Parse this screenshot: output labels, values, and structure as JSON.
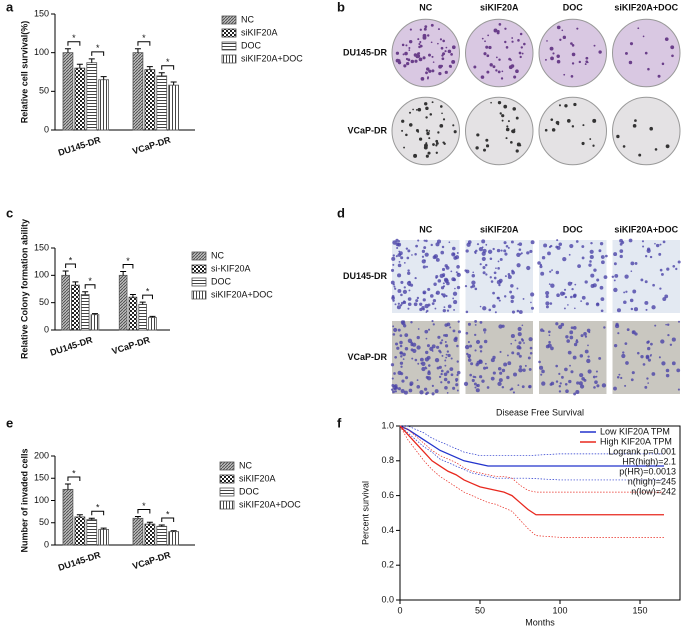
{
  "chart_data": [
    {
      "type": "bar",
      "panel_label": "a",
      "ylabel": "Relative cell survival(%)",
      "categories": [
        "DU145-DR",
        "VCaP-DR"
      ],
      "series": [
        {
          "name": "NC",
          "color": "#555",
          "pattern": "diagonal",
          "values": [
            100,
            100
          ],
          "errors": [
            5,
            5
          ]
        },
        {
          "name": "siKIF20A",
          "color": "#333",
          "pattern": "checker",
          "values": [
            80,
            78
          ],
          "errors": [
            5,
            4
          ]
        },
        {
          "name": "DOC",
          "color": "#555",
          "pattern": "horizontal",
          "values": [
            87,
            70
          ],
          "errors": [
            5,
            4
          ]
        },
        {
          "name": "siKIF20A+DOC",
          "color": "#555",
          "pattern": "vertical",
          "values": [
            65,
            58
          ],
          "errors": [
            4,
            4
          ]
        }
      ],
      "significance": [
        "*",
        "*",
        "*",
        "*"
      ],
      "ylim": [
        0,
        150
      ],
      "yticks": [
        0,
        50,
        100,
        150
      ]
    },
    {
      "type": "image-grid",
      "panel_label": "b",
      "columns": [
        "NC",
        "siKIF20A",
        "DOC",
        "siKIF20A+DOC"
      ],
      "rows": [
        "DU145-DR",
        "VCaP-DR"
      ],
      "style": "dish"
    },
    {
      "type": "bar",
      "panel_label": "c",
      "ylabel": "Relative Colony formation ability",
      "categories": [
        "DU145-DR",
        "VCaP-DR"
      ],
      "series": [
        {
          "name": "NC",
          "color": "#555",
          "pattern": "diagonal",
          "values": [
            100,
            100
          ],
          "errors": [
            8,
            7
          ]
        },
        {
          "name": "si-KIF20A",
          "color": "#333",
          "pattern": "checker",
          "values": [
            82,
            60
          ],
          "errors": [
            6,
            5
          ]
        },
        {
          "name": "DOC",
          "color": "#555",
          "pattern": "horizontal",
          "values": [
            65,
            47
          ],
          "errors": [
            5,
            4
          ]
        },
        {
          "name": "siKIF20A+DOC",
          "color": "#555",
          "pattern": "vertical",
          "values": [
            28,
            23
          ],
          "errors": [
            2,
            2
          ]
        }
      ],
      "significance": [
        "*",
        "*",
        "*",
        "*"
      ],
      "ylim": [
        0,
        150
      ],
      "yticks": [
        0,
        50,
        100,
        150
      ]
    },
    {
      "type": "image-grid",
      "panel_label": "d",
      "columns": [
        "NC",
        "siKIF20A",
        "DOC",
        "siKIF20A+DOC"
      ],
      "rows": [
        "DU145-DR",
        "VCaP-DR"
      ],
      "style": "micro"
    },
    {
      "type": "bar",
      "panel_label": "e",
      "ylabel": "Number of invaded cells",
      "categories": [
        "DU145-DR",
        "VCaP-DR"
      ],
      "series": [
        {
          "name": "NC",
          "color": "#555",
          "pattern": "diagonal",
          "values": [
            125,
            60
          ],
          "errors": [
            12,
            4
          ]
        },
        {
          "name": "siKIF20A",
          "color": "#333",
          "pattern": "checker",
          "values": [
            63,
            47
          ],
          "errors": [
            5,
            4
          ]
        },
        {
          "name": "DOC",
          "color": "#555",
          "pattern": "horizontal",
          "values": [
            57,
            42
          ],
          "errors": [
            3,
            3
          ]
        },
        {
          "name": "siKIF20A+DOC",
          "color": "#555",
          "pattern": "vertical",
          "values": [
            35,
            30
          ],
          "errors": [
            3,
            2
          ]
        }
      ],
      "significance": [
        "*",
        "*",
        "*",
        "*"
      ],
      "ylim": [
        0,
        200
      ],
      "yticks": [
        0,
        50,
        100,
        150,
        200
      ]
    },
    {
      "type": "line",
      "panel_label": "f",
      "title": "Disease Free Survival",
      "xlabel": "Months",
      "ylabel": "Percent survival",
      "series": [
        {
          "name": "Low KIF20A TPM",
          "color": "#2233cc",
          "x": [
            0,
            5,
            10,
            15,
            20,
            25,
            30,
            35,
            40,
            45,
            50,
            55,
            60,
            80,
            100,
            120,
            140,
            165
          ],
          "values": [
            1,
            0.98,
            0.95,
            0.92,
            0.89,
            0.86,
            0.84,
            0.82,
            0.8,
            0.79,
            0.78,
            0.77,
            0.77,
            0.77,
            0.77,
            0.77,
            0.77,
            0.77
          ],
          "ci_low": [
            1,
            0.96,
            0.92,
            0.88,
            0.85,
            0.81,
            0.79,
            0.77,
            0.75,
            0.73,
            0.72,
            0.71,
            0.7,
            0.7,
            0.69,
            0.69,
            0.69,
            0.69
          ],
          "ci_high": [
            1,
            1,
            0.98,
            0.96,
            0.93,
            0.91,
            0.89,
            0.87,
            0.85,
            0.84,
            0.83,
            0.83,
            0.83,
            0.83,
            0.84,
            0.84,
            0.84,
            0.84
          ]
        },
        {
          "name": "High KIF20A TPM",
          "color": "#e8281e",
          "x": [
            0,
            5,
            10,
            15,
            20,
            25,
            30,
            35,
            40,
            45,
            50,
            55,
            60,
            65,
            70,
            75,
            80,
            85,
            100,
            120,
            140,
            165
          ],
          "values": [
            1,
            0.95,
            0.9,
            0.85,
            0.8,
            0.77,
            0.74,
            0.72,
            0.69,
            0.67,
            0.65,
            0.64,
            0.63,
            0.62,
            0.6,
            0.56,
            0.52,
            0.49,
            0.49,
            0.49,
            0.49,
            0.49
          ],
          "ci_low": [
            1,
            0.92,
            0.86,
            0.8,
            0.75,
            0.71,
            0.68,
            0.65,
            0.62,
            0.6,
            0.58,
            0.56,
            0.55,
            0.53,
            0.51,
            0.46,
            0.41,
            0.37,
            0.36,
            0.36,
            0.36,
            0.36
          ],
          "ci_high": [
            1,
            0.98,
            0.94,
            0.9,
            0.86,
            0.83,
            0.81,
            0.79,
            0.76,
            0.74,
            0.73,
            0.72,
            0.71,
            0.71,
            0.7,
            0.66,
            0.63,
            0.62,
            0.62,
            0.62,
            0.62,
            0.62
          ]
        }
      ],
      "annotations": [
        "Logrank p=0.001",
        "HR(high)=2.1",
        "p(HR)=0.0013",
        "n(high)=245",
        "n(low)=242"
      ],
      "xlim": [
        0,
        175
      ],
      "xticks": [
        0,
        50,
        100,
        150
      ],
      "ylim": [
        0,
        1
      ],
      "yticks": [
        {
          "value": 0,
          "label": "0.0"
        },
        0.2,
        0.4,
        0.6,
        0.8,
        {
          "value": 1,
          "label": "1.0"
        }
      ]
    }
  ]
}
